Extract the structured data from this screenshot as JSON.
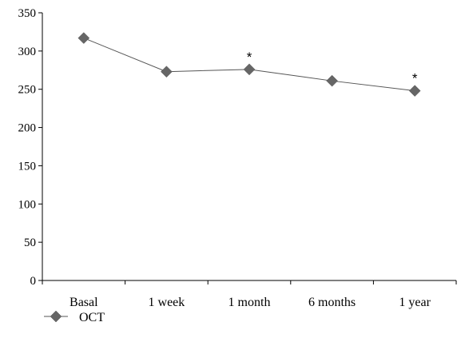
{
  "chart_data": {
    "type": "line",
    "categories": [
      "Basal",
      "1 week",
      "1 month",
      "6 months",
      "1 year"
    ],
    "series": [
      {
        "name": "OCT",
        "values": [
          317,
          273,
          276,
          261,
          248
        ],
        "color": "#666666",
        "marker": "diamond"
      }
    ],
    "annotations": [
      {
        "category": "1 month",
        "text": "*"
      },
      {
        "category": "1 year",
        "text": "*"
      }
    ],
    "ylim": [
      0,
      350
    ],
    "yticks": [
      0,
      50,
      100,
      150,
      200,
      250,
      300,
      350
    ],
    "grid": false,
    "legend": {
      "position": "bottom-left"
    }
  }
}
